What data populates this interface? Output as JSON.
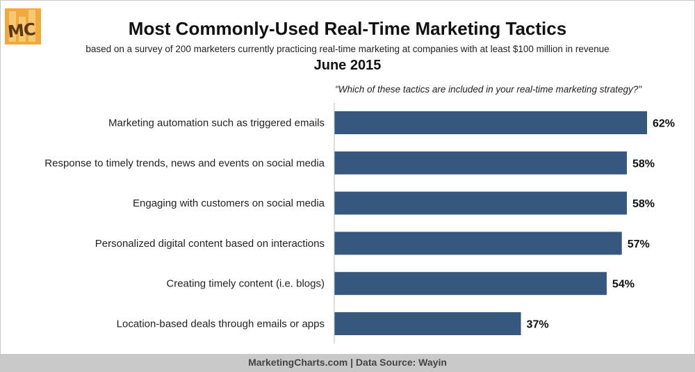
{
  "logo": {
    "text": "MC"
  },
  "header": {
    "title": "Most Commonly-Used Real-Time Marketing Tactics",
    "subtitle": "based on a survey of 200 marketers currently practicing real-time marketing at companies with at least $100 million in revenue",
    "date": "June 2015",
    "question": "\"Which of these tactics are included in your real-time marketing strategy?\""
  },
  "footer": {
    "text": "MarketingCharts.com | Data Source: Wayin"
  },
  "colors": {
    "bar": "#36587e",
    "footer_bg": "#c9c9c9",
    "logo": "#f2a93b"
  },
  "chart_data": {
    "type": "bar",
    "orientation": "horizontal",
    "categories": [
      "Marketing automation such as triggered emails",
      "Response to timely trends, news and events on social media",
      "Engaging with customers on social media",
      "Personalized digital content based on interactions",
      "Creating timely content (i.e. blogs)",
      "Location-based deals through emails or apps"
    ],
    "values": [
      62,
      58,
      58,
      57,
      54,
      37
    ],
    "value_labels": [
      "62%",
      "58%",
      "58%",
      "57%",
      "54%",
      "37%"
    ],
    "xlim": [
      0,
      62
    ],
    "grid": false,
    "legend": "none"
  }
}
